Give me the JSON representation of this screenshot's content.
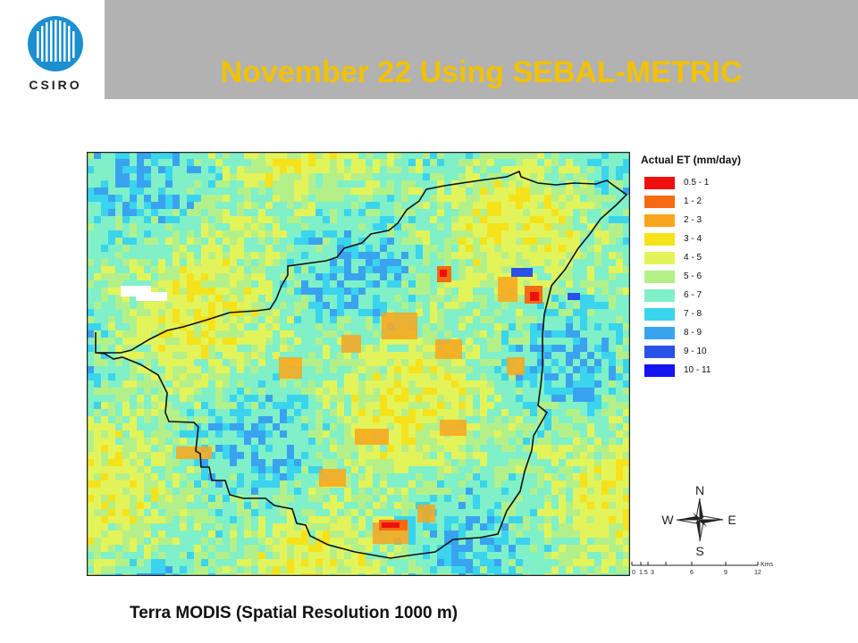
{
  "header": {
    "logo_text": "CSIRO",
    "title": "November 22 Using SEBAL-METRIC",
    "bar_color": "#b2b2b2",
    "title_color": "#f2c200"
  },
  "map": {
    "legend": {
      "title": "Actual ET (mm/day)",
      "classes": [
        {
          "label": "0.5 - 1",
          "color": "#f00f0f"
        },
        {
          "label": "1 - 2",
          "color": "#f56a12"
        },
        {
          "label": "2 - 3",
          "color": "#f9a51c"
        },
        {
          "label": "3 - 4",
          "color": "#f6e21a"
        },
        {
          "label": "4 - 5",
          "color": "#e3f45a"
        },
        {
          "label": "5 - 6",
          "color": "#b4f08a"
        },
        {
          "label": "6 - 7",
          "color": "#7ff0c8"
        },
        {
          "label": "7 - 8",
          "color": "#3ad4ee"
        },
        {
          "label": "8 - 9",
          "color": "#3aa3ef"
        },
        {
          "label": "9 - 10",
          "color": "#2a52e6"
        },
        {
          "label": "10 - 11",
          "color": "#1414f0"
        }
      ]
    },
    "north_arrow": {
      "n": "N",
      "s": "S",
      "e": "E",
      "w": "W"
    },
    "scale_bar": {
      "unit": "Kms",
      "ticks": [
        "0",
        "1.5",
        "3",
        "6",
        "9",
        "12"
      ]
    }
  },
  "caption": "Terra MODIS (Spatial Resolution 1000 m)"
}
